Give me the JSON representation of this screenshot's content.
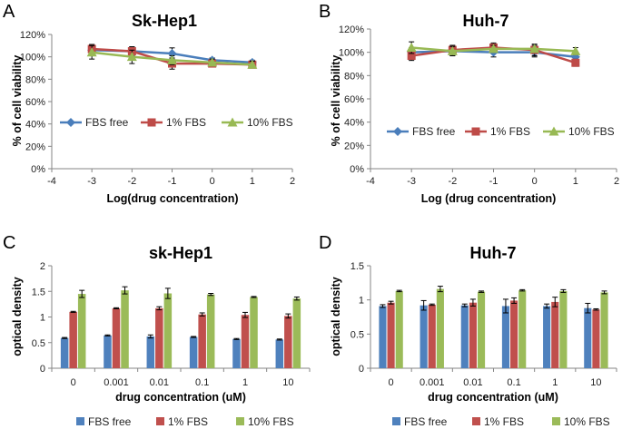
{
  "figure": {
    "description_labels": [
      "A",
      "B",
      "C",
      "D"
    ]
  },
  "chart_data": [
    {
      "panel": "A",
      "type": "line",
      "title": "Sk-Hep1",
      "xlabel": "Log(drug concentration)",
      "ylabel": "% of cell viability",
      "xlim": [
        -4,
        2
      ],
      "ylim": [
        0,
        120
      ],
      "xticks": [
        "-4",
        "-3",
        "-2",
        "-1",
        "0",
        "1",
        "2"
      ],
      "yticks": [
        "0%",
        "20%",
        "40%",
        "60%",
        "80%",
        "100%",
        "120%"
      ],
      "legend_position": "middle",
      "x": [
        -3,
        -2,
        -1,
        0,
        1
      ],
      "series": [
        {
          "name": "FBS free",
          "color": "#4a7ebb",
          "marker": "diamond",
          "values": [
            106,
            105,
            103,
            97,
            95
          ],
          "err": [
            5,
            4,
            5,
            2,
            2
          ]
        },
        {
          "name": "1% FBS",
          "color": "#be4b48",
          "marker": "square",
          "values": [
            107,
            105,
            94,
            94,
            93
          ],
          "err": [
            4,
            4,
            5,
            2,
            3
          ]
        },
        {
          "name": "10% FBS",
          "color": "#98b954",
          "marker": "triangle",
          "values": [
            104,
            100,
            97,
            95,
            93
          ],
          "err": [
            6,
            6,
            4,
            3,
            3
          ]
        }
      ]
    },
    {
      "panel": "B",
      "type": "line",
      "title": "Huh-7",
      "xlabel": "Log (drug concentration)",
      "ylabel": "% of cell viability",
      "xlim": [
        -4,
        2
      ],
      "ylim": [
        0,
        120
      ],
      "xticks": [
        "-4",
        "-3",
        "-2",
        "-1",
        "0",
        "1",
        "2"
      ],
      "yticks": [
        "0%",
        "20%",
        "40%",
        "60%",
        "80%",
        "100%",
        "120%"
      ],
      "legend_position": "lower-middle",
      "x": [
        -3,
        -2,
        -1,
        0,
        1
      ],
      "series": [
        {
          "name": "FBS free",
          "color": "#4a7ebb",
          "marker": "diamond",
          "values": [
            100,
            101,
            100,
            100,
            96
          ],
          "err": [
            4,
            4,
            4,
            4,
            3
          ]
        },
        {
          "name": "1% FBS",
          "color": "#be4b48",
          "marker": "square",
          "values": [
            97,
            102,
            104,
            102,
            91
          ],
          "err": [
            4,
            4,
            4,
            5,
            3
          ]
        },
        {
          "name": "10% FBS",
          "color": "#98b954",
          "marker": "triangle",
          "values": [
            104,
            101,
            103,
            103,
            101
          ],
          "err": [
            5,
            4,
            3,
            3,
            3
          ]
        }
      ]
    },
    {
      "panel": "C",
      "type": "bar",
      "title": "sk-Hep1",
      "xlabel": "drug concentration (uM)",
      "ylabel": "optical density",
      "ylim": [
        0,
        2
      ],
      "yticks": [
        "0",
        "0.5",
        "1",
        "1.5",
        "2"
      ],
      "categories": [
        "0",
        "0.001",
        "0.01",
        "0.1",
        "1",
        "10"
      ],
      "legend_position": "bottom",
      "series": [
        {
          "name": "FBS free",
          "color": "#4f81bd",
          "values": [
            0.59,
            0.64,
            0.62,
            0.61,
            0.57,
            0.56
          ],
          "err": [
            0.01,
            0.01,
            0.03,
            0.01,
            0.01,
            0.01
          ]
        },
        {
          "name": "1% FBS",
          "color": "#c0504d",
          "values": [
            1.1,
            1.17,
            1.17,
            1.05,
            1.04,
            1.02
          ],
          "err": [
            0.01,
            0.01,
            0.03,
            0.03,
            0.05,
            0.04
          ]
        },
        {
          "name": "10% FBS",
          "color": "#9bbb59",
          "values": [
            1.45,
            1.52,
            1.46,
            1.44,
            1.39,
            1.36
          ],
          "err": [
            0.07,
            0.07,
            0.1,
            0.02,
            0.01,
            0.03
          ]
        }
      ]
    },
    {
      "panel": "D",
      "type": "bar",
      "title": "Huh-7",
      "xlabel": "drug concentration (uM)",
      "ylabel": "optical density",
      "ylim": [
        0,
        1.5
      ],
      "yticks": [
        "0",
        "0.5",
        "1",
        "1.5"
      ],
      "categories": [
        "0",
        "0.001",
        "0.01",
        "0.1",
        "1",
        "10"
      ],
      "legend_position": "bottom",
      "series": [
        {
          "name": "FBS free",
          "color": "#4f81bd",
          "values": [
            0.91,
            0.92,
            0.92,
            0.91,
            0.91,
            0.88
          ],
          "err": [
            0.02,
            0.07,
            0.02,
            0.1,
            0.03,
            0.07
          ]
        },
        {
          "name": "1% FBS",
          "color": "#c0504d",
          "values": [
            0.96,
            0.93,
            0.96,
            0.99,
            0.97,
            0.86
          ],
          "err": [
            0.02,
            0.01,
            0.05,
            0.04,
            0.07,
            0.01
          ]
        },
        {
          "name": "10% FBS",
          "color": "#9bbb59",
          "values": [
            1.13,
            1.16,
            1.12,
            1.14,
            1.13,
            1.11
          ],
          "err": [
            0.01,
            0.04,
            0.01,
            0.01,
            0.02,
            0.02
          ]
        }
      ]
    }
  ]
}
